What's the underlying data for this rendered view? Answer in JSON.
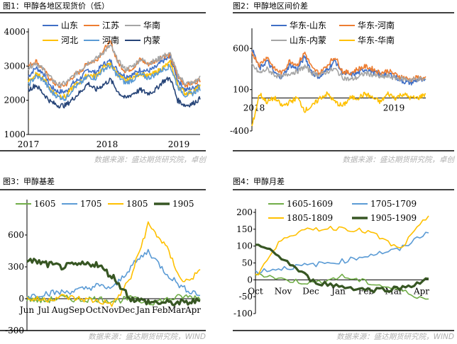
{
  "panels": [
    {
      "title": "图1：甲醇各地区现货价（低）",
      "source": "数据来源：盛达期货研究院，卓创"
    },
    {
      "title": "图2：甲醇地区间价差",
      "source": "数据来源：盛达期货研究院，卓创"
    },
    {
      "title": "图3：甲醇基差",
      "source": "数据来源：盛达期货研究院，WIND"
    },
    {
      "title": "图4：甲醇月差",
      "source": "数据来源：盛达期货研究院，WIND"
    }
  ],
  "chart_data": [
    {
      "type": "line",
      "title": "图1：甲醇各地区现货价（低）",
      "x": [
        2017.0,
        2017.1,
        2017.2,
        2017.3,
        2017.4,
        2017.5,
        2017.6,
        2017.7,
        2017.8,
        2017.9,
        2018.0,
        2018.1,
        2018.2,
        2018.3,
        2018.4,
        2018.5,
        2018.6,
        2018.7,
        2018.8,
        2018.9,
        2019.0,
        2019.1,
        2019.2,
        2019.3
      ],
      "xticks": [
        "2017",
        "2018",
        "2019"
      ],
      "yticks": [
        1000,
        2000,
        3000,
        4000
      ],
      "ylim": [
        1000,
        4000
      ],
      "series": [
        {
          "name": "山东",
          "color": "#3F6FC6",
          "values": [
            2700,
            2950,
            2800,
            2400,
            2250,
            2250,
            2500,
            2650,
            2900,
            2800,
            3050,
            3150,
            2850,
            2700,
            2750,
            2900,
            2850,
            2950,
            3150,
            3250,
            2600,
            2300,
            2350,
            2500
          ]
        },
        {
          "name": "江苏",
          "color": "#ED7D31",
          "values": [
            3000,
            3150,
            2900,
            2600,
            2400,
            2450,
            2700,
            2850,
            3100,
            3150,
            3450,
            3700,
            3100,
            2850,
            2950,
            3200,
            3050,
            3150,
            3300,
            3300,
            2700,
            2450,
            2500,
            2600
          ]
        },
        {
          "name": "华南",
          "color": "#A5A5A5",
          "values": [
            2950,
            3100,
            2900,
            2650,
            2450,
            2500,
            2700,
            2900,
            3100,
            3200,
            3400,
            3600,
            3150,
            2900,
            3000,
            3200,
            3100,
            3150,
            3300,
            3350,
            2750,
            2500,
            2500,
            2650
          ]
        },
        {
          "name": "河北",
          "color": "#FFC000",
          "values": [
            2550,
            2750,
            2650,
            2300,
            2150,
            2100,
            2400,
            2550,
            2750,
            2700,
            2950,
            3050,
            2750,
            2550,
            2650,
            2800,
            2700,
            2800,
            2950,
            3100,
            2450,
            2200,
            2250,
            2400
          ]
        },
        {
          "name": "河南",
          "color": "#5B9BD5",
          "values": [
            2450,
            2700,
            2600,
            2250,
            2100,
            2050,
            2350,
            2500,
            2700,
            2650,
            2900,
            3000,
            2700,
            2500,
            2600,
            2750,
            2650,
            2750,
            2900,
            3000,
            2400,
            2150,
            2200,
            2350
          ]
        },
        {
          "name": "内蒙",
          "color": "#264478",
          "values": [
            2300,
            2450,
            2200,
            1950,
            1850,
            1850,
            2050,
            2250,
            2500,
            2300,
            2450,
            2600,
            2250,
            2050,
            2200,
            2300,
            2200,
            2300,
            2550,
            2650,
            2000,
            1850,
            1900,
            2050
          ]
        }
      ]
    },
    {
      "type": "line",
      "title": "图2：甲醇地区间价差",
      "x": [
        2017.0,
        2017.1,
        2017.2,
        2017.3,
        2017.4,
        2017.5,
        2017.6,
        2017.7,
        2017.8,
        2017.9,
        2018.0,
        2018.1,
        2018.2,
        2018.3,
        2018.4,
        2018.5,
        2018.6,
        2018.7,
        2018.8,
        2018.9,
        2019.0,
        2019.1,
        2019.2,
        2019.3
      ],
      "xticks": [
        "2018",
        "2019"
      ],
      "yticks": [
        -400,
        100,
        600
      ],
      "ylim": [
        -400,
        800
      ],
      "series": [
        {
          "name": "华东-山东",
          "color": "#3F6FC6",
          "values": [
            600,
            350,
            450,
            300,
            250,
            400,
            350,
            500,
            300,
            250,
            350,
            450,
            300,
            280,
            300,
            350,
            320,
            280,
            300,
            250,
            200,
            180,
            220,
            200
          ]
        },
        {
          "name": "华东-河南",
          "color": "#ED7D31",
          "values": [
            550,
            400,
            500,
            350,
            300,
            450,
            400,
            550,
            350,
            300,
            400,
            500,
            320,
            300,
            350,
            380,
            350,
            300,
            330,
            280,
            250,
            220,
            250,
            230
          ]
        },
        {
          "name": "山东-内蒙",
          "color": "#A5A5A5",
          "values": [
            400,
            300,
            350,
            280,
            250,
            300,
            320,
            380,
            300,
            280,
            320,
            350,
            250,
            220,
            250,
            300,
            280,
            250,
            260,
            240,
            230,
            220,
            230,
            220
          ]
        },
        {
          "name": "华东-华南",
          "color": "#FFC000",
          "values": [
            -350,
            50,
            -50,
            0,
            -100,
            -50,
            0,
            -150,
            -100,
            0,
            50,
            -50,
            -100,
            0,
            0,
            50,
            0,
            -50,
            50,
            0,
            50,
            0,
            0,
            50
          ]
        }
      ]
    },
    {
      "type": "line",
      "title": "图3：甲醇基差",
      "x": [
        "Jun",
        "Jul",
        "Aug",
        "Sep",
        "Oct",
        "Nov",
        "Dec",
        "Jan",
        "Feb",
        "Mar",
        "Apr"
      ],
      "yticks": [
        -300,
        0,
        300,
        600
      ],
      "ylim": [
        -300,
        900
      ],
      "series": [
        {
          "name": "1605",
          "color": "#70AD47",
          "values": [
            0,
            -20,
            10,
            -10,
            0,
            -20,
            0,
            -40,
            -10,
            20,
            10
          ]
        },
        {
          "name": "1705",
          "color": "#5B9BD5",
          "values": [
            20,
            50,
            60,
            80,
            120,
            100,
            300,
            450,
            250,
            100,
            40
          ]
        },
        {
          "name": "1805",
          "color": "#FFC000",
          "values": [
            0,
            -10,
            20,
            0,
            -20,
            -50,
            200,
            700,
            500,
            150,
            250
          ]
        },
        {
          "name": "1905",
          "color": "#375623",
          "values": [
            370,
            330,
            300,
            320,
            330,
            200,
            0,
            -30,
            -40,
            -40,
            -20
          ]
        }
      ]
    },
    {
      "type": "line",
      "title": "图4：甲醇月差",
      "x": [
        "Oct",
        "Nov",
        "Dec",
        "Jan",
        "Feb",
        "Mar",
        "Apr"
      ],
      "yticks": [
        -100,
        -50,
        0,
        50,
        100,
        150,
        200
      ],
      "ylim": [
        -100,
        200
      ],
      "series": [
        {
          "name": "1605-1609",
          "color": "#70AD47",
          "values": [
            20,
            0,
            -10,
            10,
            -10,
            -30,
            -60
          ]
        },
        {
          "name": "1705-1709",
          "color": "#5B9BD5",
          "values": [
            25,
            35,
            45,
            55,
            75,
            90,
            145
          ]
        },
        {
          "name": "1805-1809",
          "color": "#FFC000",
          "values": [
            10,
            130,
            150,
            155,
            140,
            90,
            190
          ]
        },
        {
          "name": "1905-1909",
          "color": "#375623",
          "values": [
            110,
            60,
            -5,
            -20,
            -30,
            -25,
            0
          ]
        }
      ]
    }
  ]
}
